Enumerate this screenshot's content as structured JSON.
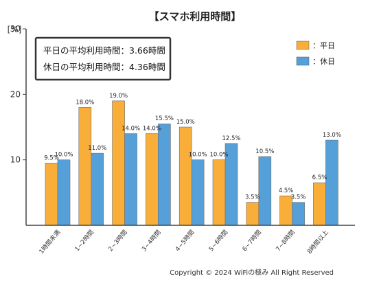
{
  "chart_data": {
    "type": "bar",
    "title": "【スマホ利用時間】",
    "ylabel": "[%]",
    "ylim": [
      0,
      30
    ],
    "yticks": [
      10,
      20,
      30
    ],
    "grid": false,
    "legend_position": "top-right",
    "categories": [
      "1時間未満",
      "1~2時間",
      "2~3時間",
      "3~4時間",
      "4~5時間",
      "5~6時間",
      "6~7時間",
      "7~8時間",
      "8時間以上"
    ],
    "series": [
      {
        "name": "：平日",
        "color": "#F9AE3A",
        "values": [
          9.5,
          18.0,
          19.0,
          14.0,
          15.0,
          10.0,
          3.5,
          4.5,
          6.5
        ],
        "labels": [
          "9.5%",
          "18.0%",
          "19.0%",
          "14.0%",
          "15.0%",
          "10.0%",
          "3.5%",
          "4.5%",
          "6.5%"
        ]
      },
      {
        "name": "：休日",
        "color": "#56A0DA",
        "values": [
          10.0,
          11.0,
          14.0,
          15.5,
          10.0,
          12.5,
          10.5,
          3.5,
          13.0
        ],
        "labels": [
          "10.0%",
          "11.0%",
          "14.0%",
          "15.5%",
          "10.0%",
          "12.5%",
          "10.5%",
          "3.5%",
          "13.0%"
        ]
      }
    ],
    "annotations": [
      "平日の平均利用時間：3.66時間",
      "休日の平均利用時間：4.36時間"
    ]
  },
  "copyright": "Copyright © 2024 WiFiの極み All Right Reserved"
}
